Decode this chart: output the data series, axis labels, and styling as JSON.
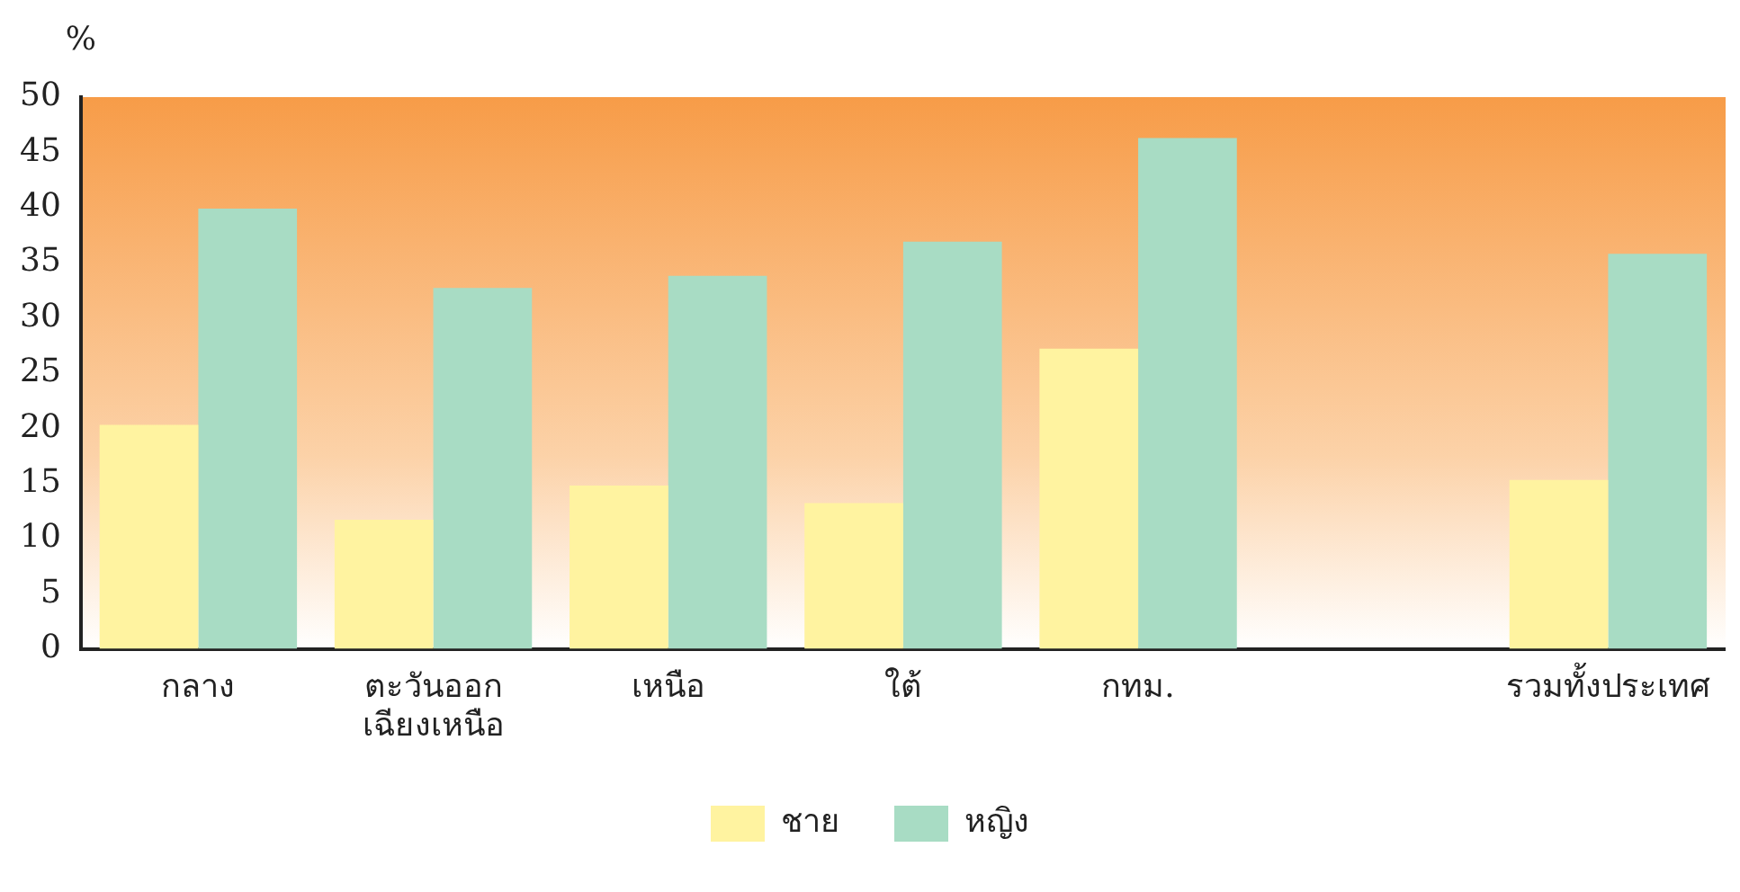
{
  "chart_data": {
    "type": "bar",
    "ylabel": "%",
    "categories": [
      "กลาง",
      "ตะวันออก\nเฉียงเหนือ",
      "เหนือ",
      "ใต้",
      "กทม.",
      null,
      "รวมทั้งประเทศ"
    ],
    "series": [
      {
        "name": "ชาย",
        "color": "#fff3a0",
        "values": [
          20.3,
          11.7,
          14.8,
          13.2,
          27.2,
          null,
          15.3
        ]
      },
      {
        "name": "หญิง",
        "color": "#a8dcc4",
        "values": [
          39.9,
          32.7,
          33.8,
          36.9,
          46.3,
          null,
          35.8
        ]
      }
    ],
    "ylim": [
      0,
      50
    ],
    "yticks": [
      0,
      5,
      10,
      15,
      20,
      25,
      30,
      35,
      40,
      45,
      50
    ],
    "grid": false,
    "legend": "bottom"
  }
}
